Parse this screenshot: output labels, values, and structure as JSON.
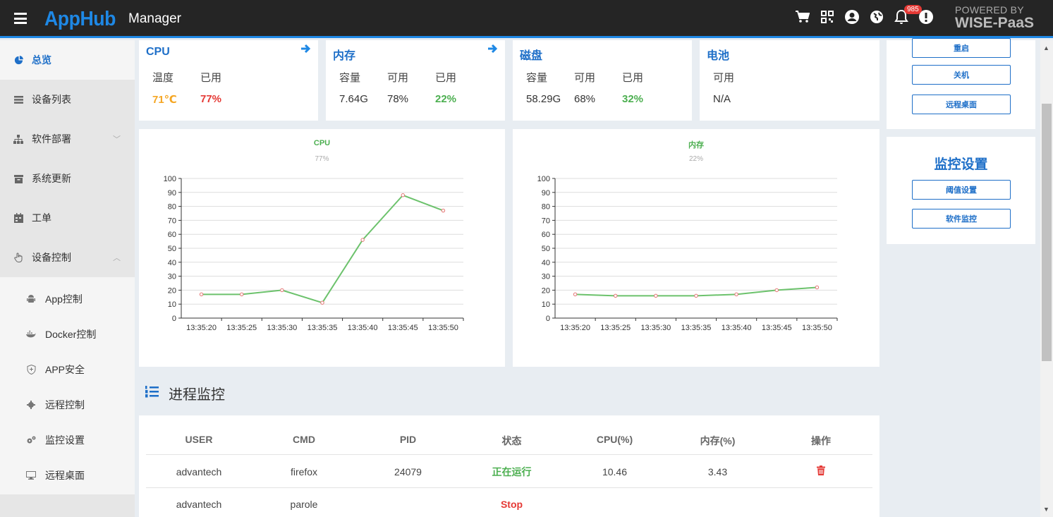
{
  "header": {
    "brand": "AppHub",
    "app": "Manager",
    "badge": "985",
    "powered_line1": "POWERED BY",
    "powered_line2": "WISE-PaaS",
    "icons": [
      "cart-icon",
      "qr-code-icon",
      "user-icon",
      "globe-icon",
      "bell-icon",
      "alert-icon"
    ]
  },
  "sidebar": {
    "items": [
      {
        "label": "总览",
        "icon": "pie-chart-icon"
      },
      {
        "label": "设备列表",
        "icon": "list-icon"
      },
      {
        "label": "软件部署",
        "icon": "sitemap-icon"
      },
      {
        "label": "系统更新",
        "icon": "archive-icon"
      },
      {
        "label": "工单",
        "icon": "calendar-icon"
      },
      {
        "label": "设备控制",
        "icon": "hand-pointer-icon"
      }
    ],
    "sub": [
      {
        "label": "App控制",
        "icon": "android-icon"
      },
      {
        "label": "Docker控制",
        "icon": "docker-icon"
      },
      {
        "label": "APP安全",
        "icon": "shield-icon"
      },
      {
        "label": "远程控制",
        "icon": "gear-icon"
      },
      {
        "label": "监控设置",
        "icon": "gears-icon"
      },
      {
        "label": "远程桌面",
        "icon": "desktop-icon"
      }
    ]
  },
  "stats": {
    "cpu": {
      "title": "CPU",
      "temp_label": "温度",
      "used_label": "已用",
      "temp": "71℃",
      "used": "77%"
    },
    "mem": {
      "title": "内存",
      "cap_label": "容量",
      "avail_label": "可用",
      "used_label": "已用",
      "cap": "7.64G",
      "avail": "78%",
      "used": "22%"
    },
    "disk": {
      "title": "磁盘",
      "cap_label": "容量",
      "avail_label": "可用",
      "used_label": "已用",
      "cap": "58.29G",
      "avail": "68%",
      "used": "32%"
    },
    "battery": {
      "title": "电池",
      "avail_label": "可用",
      "avail": "N/A"
    }
  },
  "right_panel": {
    "buttons_top": [
      "重启",
      "关机",
      "远程桌面"
    ],
    "monitor_title": "监控设置",
    "buttons_monitor": [
      "阈值设置",
      "软件监控"
    ]
  },
  "chart_data": [
    {
      "type": "line",
      "title": "CPU",
      "subtitle": "77%",
      "x": [
        "13:35:20",
        "13:35:25",
        "13:35:30",
        "13:35:35",
        "13:35:40",
        "13:35:45",
        "13:35:50"
      ],
      "y": [
        17,
        17,
        20,
        11,
        56,
        88,
        77
      ],
      "ylim": [
        0,
        100
      ],
      "yticks": [
        0,
        10,
        20,
        30,
        40,
        50,
        60,
        70,
        80,
        90,
        100
      ],
      "grid": true,
      "line_color": "#6cc26c",
      "point_color": "#e57373"
    },
    {
      "type": "line",
      "title": "内存",
      "subtitle": "22%",
      "x": [
        "13:35:20",
        "13:35:25",
        "13:35:30",
        "13:35:35",
        "13:35:40",
        "13:35:45",
        "13:35:50"
      ],
      "y": [
        17,
        16,
        16,
        16,
        17,
        20,
        22
      ],
      "ylim": [
        0,
        100
      ],
      "yticks": [
        0,
        10,
        20,
        30,
        40,
        50,
        60,
        70,
        80,
        90,
        100
      ],
      "grid": true,
      "line_color": "#6cc26c",
      "point_color": "#e57373"
    }
  ],
  "process": {
    "title": "进程监控",
    "columns": [
      "USER",
      "CMD",
      "PID",
      "状态",
      "CPU(%)",
      "内存(%)",
      "操作"
    ],
    "rows": [
      {
        "user": "advantech",
        "cmd": "firefox",
        "pid": "24079",
        "status": "正在运行",
        "cpu": "10.46",
        "mem": "3.43",
        "action": "trash-icon"
      },
      {
        "user": "advantech",
        "cmd": "parole",
        "pid": "",
        "status": "Stop",
        "cpu": "",
        "mem": "",
        "action": ""
      }
    ]
  }
}
